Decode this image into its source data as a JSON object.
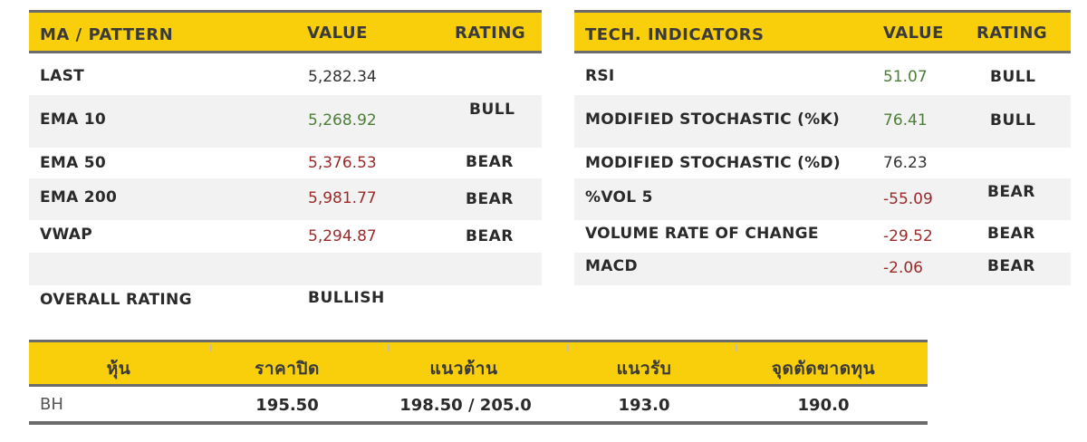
{
  "left_table": {
    "headers": {
      "name": "MA / PATTERN",
      "value": "VALUE",
      "rating": "RATING"
    },
    "rows": [
      {
        "name": "LAST",
        "value": "5,282.34",
        "rating": "",
        "value_color": "dark"
      },
      {
        "name": "EMA 10",
        "value": "5,268.92",
        "rating": "BULL",
        "value_color": "green"
      },
      {
        "name": "EMA 50",
        "value": "5,376.53",
        "rating": "BEAR",
        "value_color": "red"
      },
      {
        "name": "EMA 200",
        "value": "5,981.77",
        "rating": "BEAR",
        "value_color": "red"
      },
      {
        "name": "VWAP",
        "value": "5,294.87",
        "rating": "BEAR",
        "value_color": "red"
      },
      {
        "name": "",
        "value": "",
        "rating": "",
        "value_color": "dark"
      }
    ],
    "overall": {
      "label": "OVERALL RATING",
      "value": "BULLISH"
    }
  },
  "right_table": {
    "headers": {
      "name": "TECH. INDICATORS",
      "value": "VALUE",
      "rating": "RATING"
    },
    "rows": [
      {
        "name": "RSI",
        "value": "51.07",
        "rating": "BULL",
        "value_color": "green"
      },
      {
        "name": "MODIFIED STOCHASTIC (%K)",
        "value": "76.41",
        "rating": "BULL",
        "value_color": "green"
      },
      {
        "name": "MODIFIED STOCHASTIC (%D)",
        "value": "76.23",
        "rating": "",
        "value_color": "dark"
      },
      {
        "name": "%VOL 5",
        "value": "-55.09",
        "rating": "BEAR",
        "value_color": "red"
      },
      {
        "name": "VOLUME RATE OF CHANGE",
        "value": "-29.52",
        "rating": "BEAR",
        "value_color": "red"
      },
      {
        "name": "MACD",
        "value": "-2.06",
        "rating": "BEAR",
        "value_color": "red"
      }
    ]
  },
  "bottom_table": {
    "headers": [
      "หุ้น",
      "ราคาปิด",
      "แนวต้าน",
      "แนวรับ",
      "จุดตัดขาดทุน"
    ],
    "row": [
      "BH",
      "195.50",
      "198.50 / 205.0",
      "193.0",
      "190.0"
    ]
  },
  "colors": {
    "header_yellow": "#f8cf0a",
    "header_border": "#6b6b6b",
    "row_shade": "#f2f2f2",
    "positive": "#4e7d3a",
    "negative": "#9b2a2a"
  }
}
